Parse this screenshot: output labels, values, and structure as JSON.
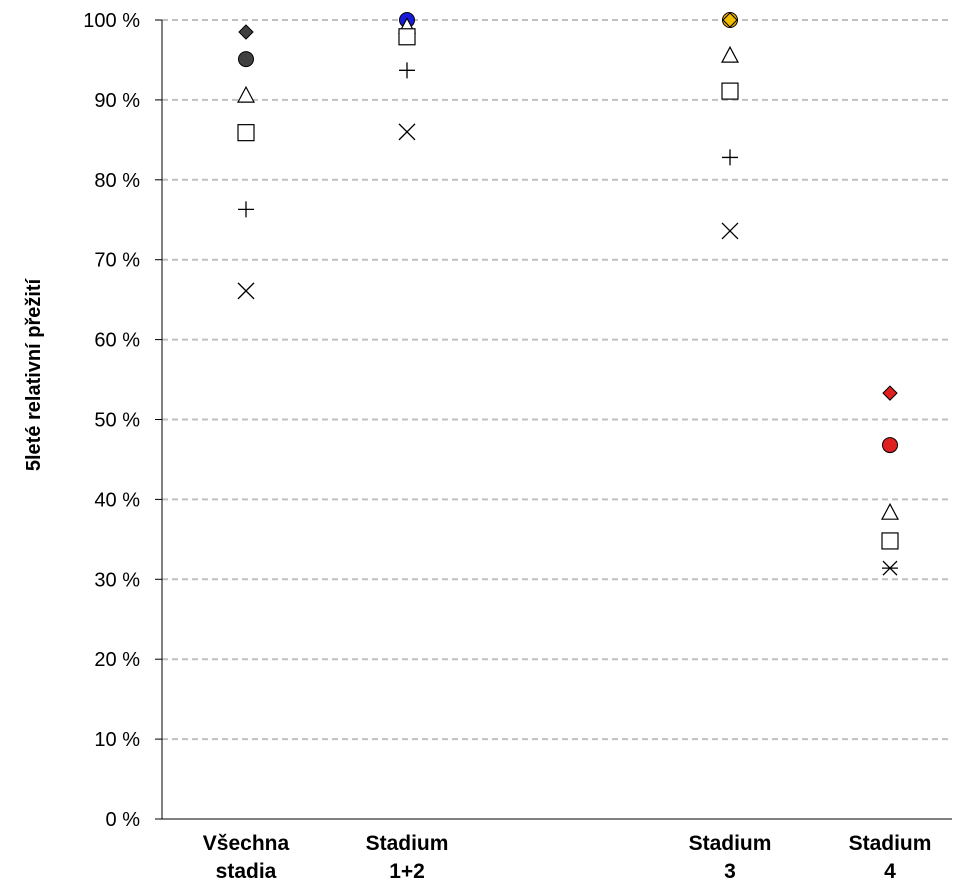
{
  "chart_data": {
    "type": "scatter",
    "title": "",
    "ylabel": "5leté relativní přežití",
    "ylim": [
      0,
      100
    ],
    "yticks": [
      "0 %",
      "10 %",
      "20 %",
      "30 %",
      "40 %",
      "50 %",
      "60 %",
      "70 %",
      "80 %",
      "90 %",
      "100 %"
    ],
    "grid": true,
    "categories": [
      [
        "Všechna",
        "stadia"
      ],
      [
        "Stadium",
        "1+2"
      ],
      [
        "Stadium",
        "3"
      ],
      [
        "Stadium",
        "4"
      ]
    ],
    "groups": [
      {
        "points": [
          {
            "marker": "diamond",
            "fill": "#404040",
            "value": 98.5
          },
          {
            "marker": "circle",
            "fill": "#404040",
            "value": 95.1
          },
          {
            "marker": "triangle",
            "fill": "none",
            "value": 90.6
          },
          {
            "marker": "square",
            "fill": "none",
            "value": 85.9
          },
          {
            "marker": "plus",
            "fill": "none",
            "value": 76.3
          },
          {
            "marker": "x",
            "fill": "none",
            "value": 66.1
          }
        ]
      },
      {
        "points": [
          {
            "marker": "diamond",
            "fill": "#404040",
            "value": 100.0
          },
          {
            "marker": "circle",
            "fill": "#1a1adb",
            "value": 100.0
          },
          {
            "marker": "triangle",
            "fill": "none",
            "value": 99.2
          },
          {
            "marker": "square",
            "fill": "none",
            "value": 97.9
          },
          {
            "marker": "plus",
            "fill": "none",
            "value": 93.7
          },
          {
            "marker": "x",
            "fill": "none",
            "value": 86.0
          }
        ]
      },
      {
        "points": [
          {
            "marker": "circle",
            "fill": "#f0b000",
            "value": 100.0
          },
          {
            "marker": "diamond",
            "fill": "#f0c000",
            "value": 100.0
          },
          {
            "marker": "triangle",
            "fill": "none",
            "value": 95.6
          },
          {
            "marker": "square",
            "fill": "none",
            "value": 91.1
          },
          {
            "marker": "plus",
            "fill": "none",
            "value": 82.8
          },
          {
            "marker": "x",
            "fill": "none",
            "value": 73.6
          }
        ]
      },
      {
        "points": [
          {
            "marker": "diamond",
            "fill": "#e02020",
            "value": 53.3
          },
          {
            "marker": "circle",
            "fill": "#e02020",
            "value": 46.8
          },
          {
            "marker": "triangle",
            "fill": "none",
            "value": 38.4
          },
          {
            "marker": "square",
            "fill": "none",
            "value": 34.8
          },
          {
            "marker": "star",
            "fill": "none",
            "value": 31.4
          }
        ]
      }
    ]
  }
}
